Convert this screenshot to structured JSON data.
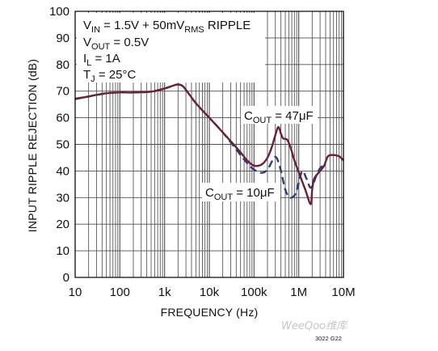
{
  "chart_data": {
    "type": "line",
    "xlabel": "FREQUENCY (Hz)",
    "ylabel": "INPUT RIPPLE REJECTION (dB)",
    "x_axis": {
      "scale": "log",
      "range": [
        10,
        10000000
      ],
      "ticks": [
        10,
        100,
        1000,
        10000,
        100000,
        1000000,
        10000000
      ],
      "tick_labels": [
        "10",
        "100",
        "1k",
        "10k",
        "100k",
        "1M",
        "10M"
      ],
      "minor_grid": true
    },
    "y_axis": {
      "scale": "linear",
      "range": [
        0,
        100
      ],
      "ticks": [
        0,
        10,
        20,
        30,
        40,
        50,
        60,
        70,
        80,
        90,
        100
      ],
      "tick_labels": [
        "0",
        "10",
        "20",
        "30",
        "40",
        "50",
        "60",
        "70",
        "80",
        "90",
        "100"
      ]
    },
    "grid": true,
    "annotations": [
      [
        {
          "text": "V"
        },
        {
          "text": "IN",
          "sub": true
        },
        {
          "text": " = 1.5V + 50mV"
        },
        {
          "text": "RMS",
          "sub": true
        },
        {
          "text": " RIPPLE"
        }
      ],
      [
        {
          "text": "V"
        },
        {
          "text": "OUT",
          "sub": true
        },
        {
          "text": " = 0.5V"
        }
      ],
      [
        {
          "text": "I"
        },
        {
          "text": "L",
          "sub": true
        },
        {
          "text": " = 1A"
        }
      ],
      [
        {
          "text": "T"
        },
        {
          "text": "J",
          "sub": true
        },
        {
          "text": " = 25°C"
        }
      ]
    ],
    "series": [
      {
        "name": [
          {
            "text": "C"
          },
          {
            "text": "OUT",
            "sub": true
          },
          {
            "text": " = 47μF"
          }
        ],
        "line_style": "solid",
        "color": "#6b2036",
        "x": [
          10,
          15,
          20,
          30,
          50,
          100,
          200,
          500,
          1000,
          1500,
          2000,
          2500,
          3000,
          5000,
          10000,
          20000,
          50000,
          70000,
          100000,
          150000,
          200000,
          250000,
          300000,
          350000,
          400000,
          450000,
          550000,
          650000,
          800000,
          1000000,
          1400000,
          1850000,
          2000000,
          2200000,
          2600000,
          3000000,
          3700000,
          4500000,
          6000000,
          8000000,
          10000000
        ],
        "y": [
          67.2,
          67.6,
          68,
          68.6,
          69.2,
          69.5,
          69.5,
          69.8,
          71,
          72,
          72.5,
          72,
          70.5,
          65.5,
          60,
          54.5,
          47,
          44,
          42,
          42.5,
          45,
          49,
          53.5,
          56.5,
          54,
          52.2,
          51.8,
          49,
          44,
          39.5,
          33,
          27.5,
          33,
          37,
          38.8,
          40,
          42,
          45.5,
          46,
          45.5,
          44
        ]
      },
      {
        "name": [
          {
            "text": "C"
          },
          {
            "text": "OUT",
            "sub": true
          },
          {
            "text": " = 10μF"
          }
        ],
        "line_style": "dashed",
        "color": "#2e3c7e",
        "x": [
          10,
          20,
          50,
          100,
          200,
          500,
          1000,
          1500,
          2000,
          2500,
          3000,
          5000,
          10000,
          20000,
          50000,
          70000,
          100000,
          150000,
          200000,
          250000,
          300000,
          350000,
          400000,
          500000,
          600000,
          700000,
          850000,
          1000000,
          1200000,
          1500000,
          1800000,
          2100000,
          2500000,
          3000000,
          3500000,
          4000000
        ],
        "y": [
          67,
          68,
          69.2,
          69.5,
          69.5,
          69.8,
          71,
          72,
          72.5,
          72,
          70.5,
          65.5,
          60,
          54.5,
          46,
          43,
          40.5,
          39.3,
          40.5,
          43.5,
          45.3,
          43.5,
          40,
          33,
          30.4,
          30,
          31.5,
          35.5,
          40,
          37,
          33.8,
          35,
          38.5,
          41,
          42,
          42.8
        ]
      }
    ]
  },
  "figure_code": "3022 G22",
  "watermark": "WeeQoo维库",
  "colors": {
    "background": "#ffffff",
    "grid": "#4f4f4f",
    "frame": "#000000",
    "text": "#111111"
  }
}
